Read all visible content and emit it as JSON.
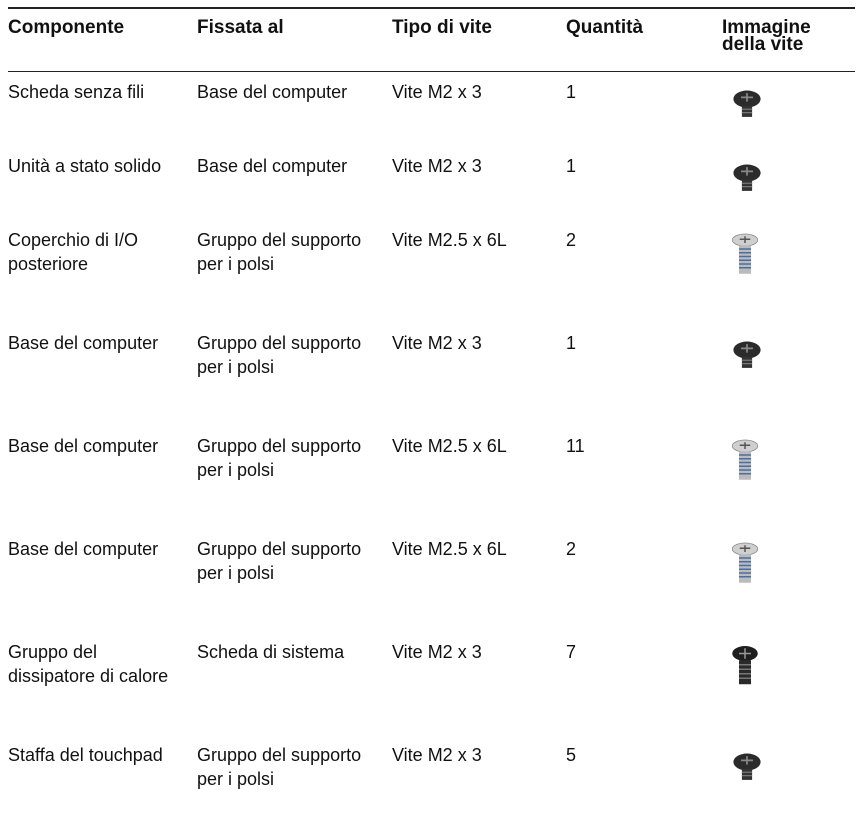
{
  "table": {
    "header": [
      "Componente",
      "Fissata al",
      "Tipo di vite",
      "Quantità",
      "Immagine della vite"
    ],
    "rows": [
      [
        "Scheda senza fili",
        "Base del computer",
        "Vite M2 x 3",
        "1"
      ],
      [
        "Unità a stato solido",
        "Base del computer",
        "Vite M2 x 3",
        "1"
      ],
      [
        "Coperchio di I/O posteriore",
        "Gruppo del supporto per i polsi",
        "Vite M2.5 x 6L",
        "2"
      ],
      [
        "Base del computer",
        "Gruppo del supporto per i polsi",
        "Vite M2 x 3",
        "1"
      ],
      [
        "Base del computer",
        "Gruppo del supporto per i polsi",
        "Vite M2.5 x 6L",
        "11"
      ],
      [
        "Base del computer",
        "Gruppo del supporto per i polsi",
        "Vite M2.5 x 6L",
        "2"
      ],
      [
        "Gruppo del dissipatore di calore",
        "Scheda di sistema",
        "Vite M2 x 3",
        "7"
      ],
      [
        "Staffa del touchpad",
        "Gruppo del supporto per i polsi",
        "Vite M2 x 3",
        "5"
      ]
    ]
  }
}
